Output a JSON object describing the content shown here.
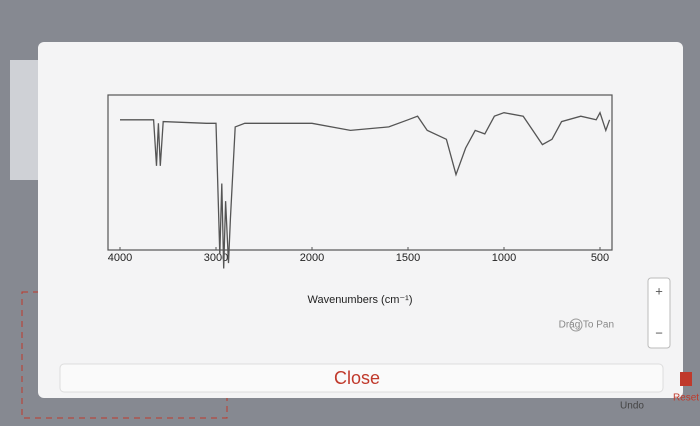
{
  "chart_data": {
    "type": "line",
    "xlabel": "Wavenumbers (cm⁻¹)",
    "x": [
      4000,
      3700,
      3650,
      3620,
      3600,
      3580,
      3550,
      3100,
      3000,
      2960,
      2940,
      2920,
      2900,
      2870,
      2850,
      2800,
      2700,
      2000,
      1800,
      1600,
      1500,
      1450,
      1400,
      1300,
      1250,
      1200,
      1150,
      1100,
      1050,
      1000,
      900,
      850,
      800,
      750,
      700,
      600,
      520,
      500,
      470,
      450
    ],
    "values": [
      86,
      86,
      86,
      60,
      84,
      60,
      85,
      84,
      84,
      10,
      50,
      2,
      40,
      5,
      30,
      82,
      84,
      84,
      80,
      82,
      86,
      88,
      80,
      75,
      55,
      70,
      80,
      78,
      88,
      90,
      88,
      80,
      72,
      75,
      85,
      88,
      86,
      90,
      80,
      86
    ],
    "color": "#555555",
    "xlim": [
      4000,
      450
    ],
    "ylim": [
      0,
      100
    ],
    "xticks": [
      4000,
      3000,
      2000,
      1500,
      1000,
      500
    ]
  },
  "ui": {
    "pan_hint": "Drag To Pan",
    "zoom_in": "+",
    "zoom_out": "−",
    "close": "Close",
    "undo": "Undo",
    "reset": "Reset"
  }
}
